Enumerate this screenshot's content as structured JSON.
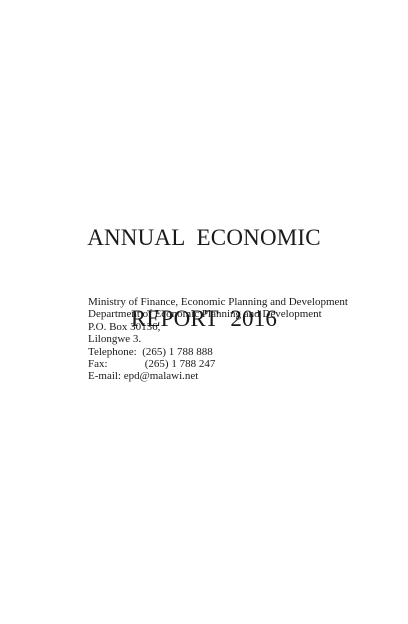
{
  "title": {
    "line1": "ANNUAL  ECONOMIC",
    "line2": "REPORT  2016"
  },
  "contact": {
    "ministry": "Ministry of Finance, Economic Planning and Development",
    "department": "Department of Economic Planning and Development",
    "po_box": "P.O. Box 30136,",
    "city": "Lilongwe 3.",
    "telephone_label": "Telephone:",
    "telephone_value": "(265) 1 788 888",
    "fax_label": "Fax:",
    "fax_value": "(265) 1 788 247",
    "email": "E-mail: epd@malawi.net"
  }
}
